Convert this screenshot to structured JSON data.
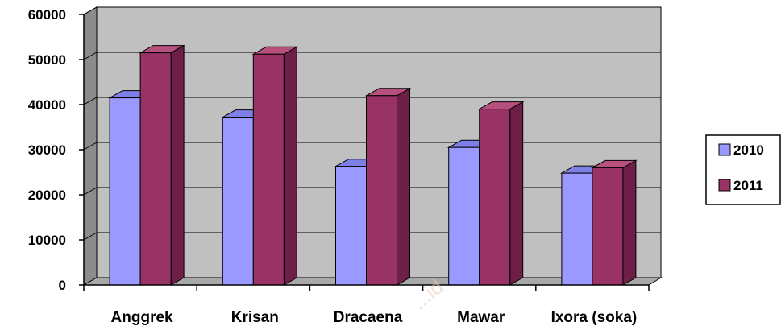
{
  "chart_data": {
    "type": "bar",
    "categories": [
      "Anggrek",
      "Krisan",
      "Dracaena",
      "Mawar",
      "Ixora (soka)"
    ],
    "series": [
      {
        "name": "2010",
        "values": [
          41500,
          37200,
          26300,
          30500,
          24800
        ]
      },
      {
        "name": "2011",
        "values": [
          51500,
          51200,
          42000,
          39000,
          26000
        ]
      }
    ],
    "y_ticks": [
      "0",
      "10000",
      "20000",
      "30000",
      "40000",
      "50000",
      "60000"
    ],
    "ylim": [
      0,
      60000
    ],
    "grid": true,
    "legend_position": "right",
    "style": "3d-clustered-column",
    "colors": {
      "series_2010_front": "#9999ff",
      "series_2010_top": "#7f7fe8",
      "series_2010_side": "#6a6ad0",
      "series_2011_front": "#993366",
      "series_2011_top": "#b8507e",
      "series_2011_side": "#6e1f47",
      "wall": "#c0c0c0",
      "wall_side": "#8c8c8c",
      "floor": "#a8a8a8",
      "gridline": "#000000"
    }
  },
  "watermark": "...id"
}
